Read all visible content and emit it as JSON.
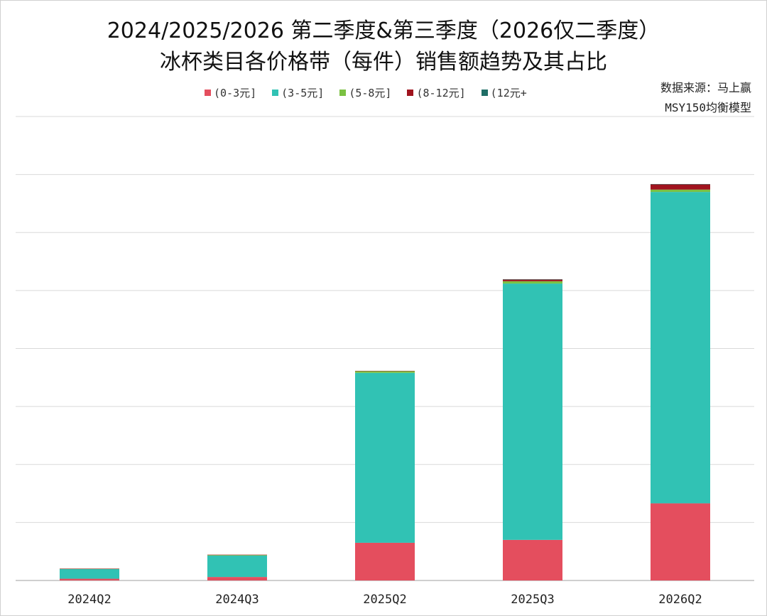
{
  "title_line1": "2024/2025/2026 第二季度&第三季度（2026仅二季度）",
  "title_line2": "冰杯类目各价格带（每件）销售额趋势及其占比",
  "source_line1": "数据来源：马上赢",
  "source_line2": "MSY150均衡模型",
  "chart_data": {
    "type": "bar",
    "stacked": true,
    "categories": [
      "2024Q2",
      "2024Q3",
      "2025Q2",
      "2025Q3",
      "2026Q2"
    ],
    "series": [
      {
        "name": "(0-3元]",
        "color": "#e44e5e",
        "values": [
          0.3,
          0.6,
          6.5,
          7.0,
          13.3
        ]
      },
      {
        "name": "(3-5元]",
        "color": "#31c2b4",
        "values": [
          1.7,
          3.7,
          29.3,
          44.2,
          53.7
        ]
      },
      {
        "name": "(5-8元]",
        "color": "#7bc142",
        "values": [
          0.03,
          0.1,
          0.3,
          0.4,
          0.4
        ]
      },
      {
        "name": "(8-12元]",
        "color": "#a0141e",
        "values": [
          0.01,
          0.05,
          0.05,
          0.3,
          0.9
        ]
      },
      {
        "name": "(12元+",
        "color": "#1f6e66",
        "values": [
          0,
          0,
          0,
          0.03,
          0.05
        ]
      }
    ],
    "ylim": [
      0,
      80
    ],
    "grid": true,
    "legend_position": "top",
    "xlabel": "",
    "ylabel": ""
  }
}
